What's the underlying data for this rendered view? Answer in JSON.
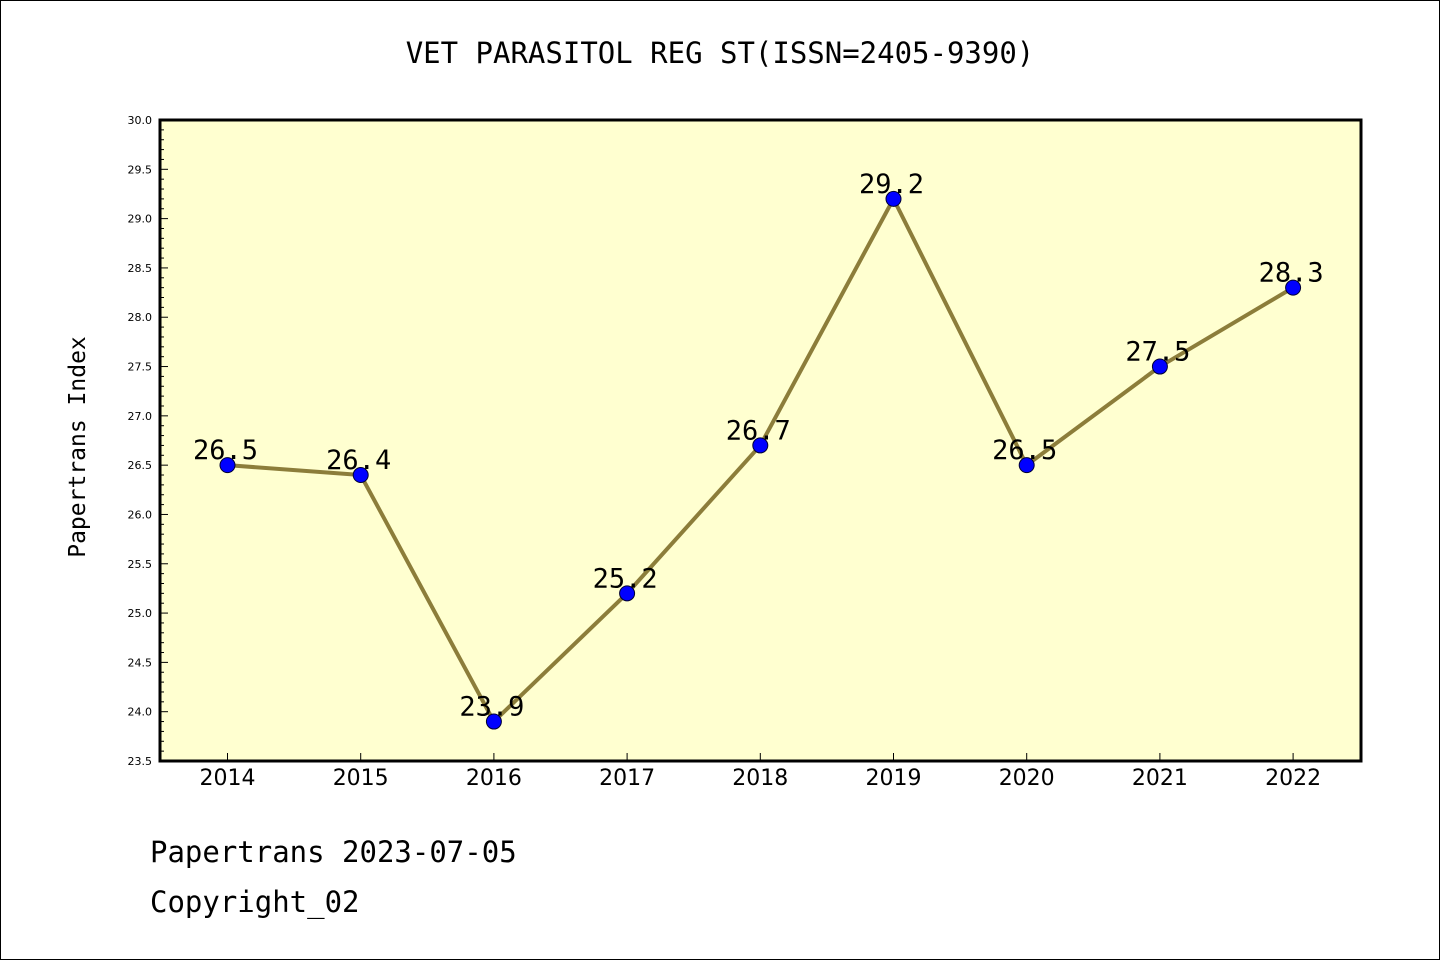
{
  "chart_data": {
    "type": "line",
    "title": "VET PARASITOL REG ST(ISSN=2405-9390)",
    "xlabel": "",
    "ylabel": "Papertrans Index",
    "categories": [
      "2014",
      "2015",
      "2016",
      "2017",
      "2018",
      "2019",
      "2020",
      "2021",
      "2022"
    ],
    "series": [
      {
        "values": [
          26.5,
          26.4,
          23.9,
          25.2,
          26.7,
          29.2,
          26.5,
          27.5,
          28.3
        ],
        "data_labels": [
          "26.5",
          "26.4",
          "23.9",
          "25.2",
          "26.7",
          "29.2",
          "26.5",
          "27.5",
          "28.3"
        ],
        "line_color": "#8c7d3a",
        "marker_color": "#0000ff"
      }
    ],
    "ylim": [
      23.5,
      30.0
    ],
    "yticks": [
      "23.5",
      "24.0",
      "24.5",
      "25.0",
      "25.5",
      "26.0",
      "26.5",
      "27.0",
      "27.5",
      "28.0",
      "28.5",
      "29.0",
      "29.5",
      "30.0"
    ],
    "grid": false,
    "plot_background": "#ffffd0"
  },
  "footer": {
    "date_line": "Papertrans 2023-07-05",
    "copyright": "Copyright_02"
  }
}
